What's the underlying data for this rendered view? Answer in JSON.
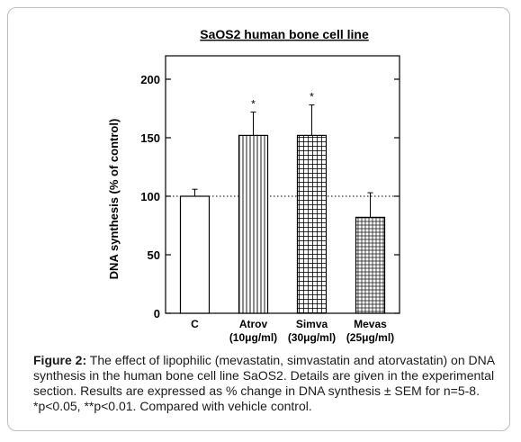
{
  "chart_data": {
    "type": "bar",
    "title": "SaOS2 human bone cell line",
    "ylabel": "DNA synthesis (% of control)",
    "xlabel": "",
    "ylim": [
      0,
      220
    ],
    "yticks": [
      0,
      50,
      100,
      150,
      200
    ],
    "reference_line": 100,
    "categories": [
      {
        "line1": "C",
        "line2": ""
      },
      {
        "line1": "Atrov",
        "line2": "(10μg/ml)"
      },
      {
        "line1": "Simva",
        "line2": "(30μg/ml)"
      },
      {
        "line1": "Mevas",
        "line2": "(25μg/ml)"
      }
    ],
    "values": [
      100,
      152,
      152,
      82
    ],
    "errors": [
      6,
      20,
      26,
      21
    ],
    "significance": [
      "",
      "*",
      "*",
      ""
    ],
    "patterns": [
      "none",
      "vertical-lines",
      "grid",
      "grid-fine"
    ]
  },
  "caption": {
    "label": "Figure 2:",
    "text": "The effect of lipophilic (mevastatin, simvastatin and atorvastatin) on DNA synthesis in the human bone cell line SaOS2. Details are given in the experimental section. Results are expressed as % change in DNA synthesis ± SEM for n=5-8. *p<0.05, **p<0.01. Compared with vehicle control."
  }
}
